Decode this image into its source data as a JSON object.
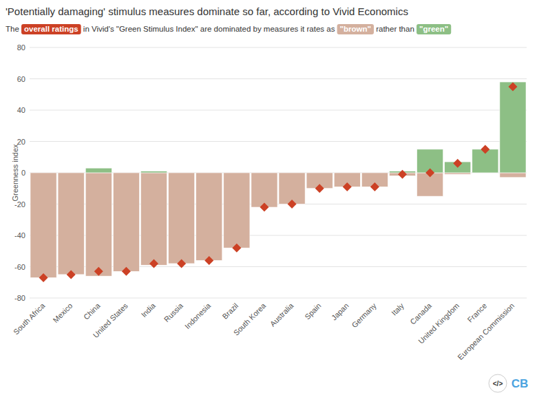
{
  "chart_data": {
    "type": "bar",
    "title": "'Potentially damaging' stimulus measures dominate so far, according to Vivid Economics",
    "subtitle": "The overall ratings in Vivid's \"Green Stimulus Index\" are dominated by measures it rates as \"brown\" rather than \"green\"",
    "ylabel": "Greenness index",
    "categories": [
      "South Africa",
      "Mexico",
      "China",
      "United States",
      "India",
      "Russia",
      "Indonesia",
      "Brazil",
      "South Korea",
      "Australia",
      "Spain",
      "Japan",
      "Germany",
      "Italy",
      "Canada",
      "United Kingdom",
      "France",
      "European Commission"
    ],
    "series": [
      {
        "name": "\"brown\"",
        "color": "#d4b09e",
        "values": [
          -67,
          -65,
          -66,
          -63,
          -59,
          -58,
          -56,
          -48,
          -22,
          -20,
          -10,
          -9,
          -9,
          -2,
          -15,
          -1,
          0,
          -3
        ]
      },
      {
        "name": "\"green\"",
        "color": "#8dbf85",
        "values": [
          0,
          0,
          3,
          0,
          1,
          0,
          0,
          0,
          0,
          0,
          0,
          0,
          0,
          1,
          15,
          7,
          15,
          58
        ]
      },
      {
        "name": "overall ratings",
        "type": "scatter",
        "marker": "diamond",
        "color": "#cc4125",
        "values": [
          -67,
          -65,
          -63,
          -63,
          -58,
          -58,
          -56,
          -48,
          -22,
          -20,
          -10,
          -9,
          -9,
          -1,
          0,
          6,
          15,
          55
        ]
      }
    ],
    "stacked": true,
    "ylim": [
      -80,
      80
    ],
    "yticks": [
      -80,
      -60,
      -40,
      -20,
      0,
      20,
      40,
      60,
      80
    ],
    "grid": true,
    "annotations": [
      "</>",
      "CB"
    ]
  }
}
